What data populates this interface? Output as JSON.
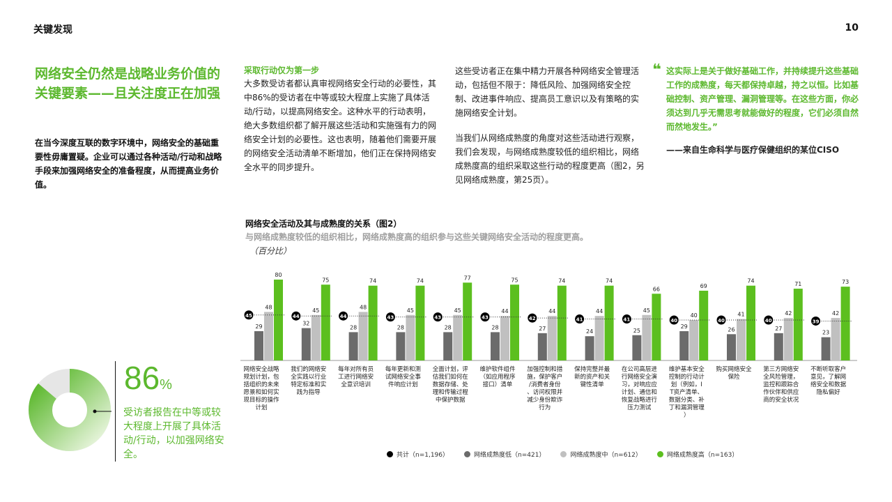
{
  "header": {
    "section": "关键发现",
    "page": "10"
  },
  "headline": "网络安全仍然是战略业务价值的关键要素——且关注度正在加强",
  "intro": "在当今深度互联的数字环境中，网络安全的基础重要性毋庸置疑。企业可以通过各种活动/行动和战略手段来加强网络安全的准备程度，从而提高业务价值。",
  "col1": {
    "heading": "采取行动仅为第一步",
    "body": "大多数受访者都认真审视网络安全行动的必要性，其中86%的受访者在中等或较大程度上实施了具体活动/行动，以提高网络安全。这种水平的行动表明，绝大多数组织都了解开展这些活动和实施强有力的网络安全计划的必要性。这也表明，随着他们需要开展的网络安全活动清单不断增加，他们正在保持网络安全水平的同步提升。"
  },
  "col2": {
    "p1": "这些受访者正在集中精力开展各种网络安全管理活动，包括但不限于：降低风险、加强网络安全控制、改进事件响应、提高员工意识以及有策略的实施网络安全计划。",
    "p2": "当我们从网络成熟度的角度对这些活动进行观察，我们会发现，与网络成熟度较低的组织相比，网络成熟度高的组织采取这些行动的程度更高（图2，另见网络成熟度，第25页）。"
  },
  "quote": {
    "mark": "❝",
    "text": "这实际上是关于做好基础工作，并持续提升这些基础工作的成熟度，每天都保持卓越，持之以恒。比如基础控制、资产管理、漏洞管理等。在这些方面，你必须达到几乎无需思考就能做好的程度，它们必须自然而然地发生。”",
    "attribution": "——来自生命科学与医疗保健组织的某位CISO"
  },
  "stat": {
    "value": "86",
    "unit": "%",
    "caption": "受访者报告在中等或较大程度上开展了具体活动/行动，以加强网络安全。",
    "donut_fraction": 0.86
  },
  "chart_data": {
    "type": "bar",
    "title": "网络安全活动及其与成熟度的关系（图2）",
    "subtitle": "与网络成熟度较低的组织相比，网络成熟度高的组织参与这些关键网络安全活动的程度更高。",
    "unit": "（百分比）",
    "ylim": [
      0,
      100
    ],
    "categories": [
      "网络安全战略规划计划，包括组织的未来愿景和如何实现目标的操作计划",
      "我们的网络安全实践以行业特定标准和实践为指导",
      "每年对所有员工进行网络安全意识培训",
      "每年更新和测试网络安全事件响应计划",
      "全面计划，评估我们如何在数据存储、处理和传输过程中保护数据",
      "维护软件组件（如应用程序接口）清单",
      "加强控制和措施，保护客户/消费者身份、访问权限并减少身份欺诈行为",
      "保持完整并最新的资产和关键性清单",
      "在公司高层进行网络安全演习，对响应应计划、通信和恢复战略进行压力测试",
      "维护基本安全控制的行动计划（例如，IT资产清单、数据分类、补丁和漏洞管理）",
      "购买网络安全保险",
      "第三方网络安全风险管理，监控和跟踪合作伙伴和供应商的安全状况",
      "不断听取客户意见，了解网络安全和数据隐私偏好"
    ],
    "series": [
      {
        "name": "共计（n=1,196）",
        "color": "#000000",
        "values": [
          45,
          44,
          44,
          43,
          43,
          43,
          42,
          41,
          41,
          40,
          40,
          40,
          39
        ]
      },
      {
        "name": "网络成熟度低（n=421）",
        "color": "#6b6b6b",
        "values": [
          29,
          32,
          28,
          28,
          28,
          28,
          27,
          24,
          25,
          29,
          26,
          27,
          23
        ]
      },
      {
        "name": "网络成熟度中（n=612）",
        "color": "#c0c0c0",
        "values": [
          48,
          45,
          48,
          45,
          45,
          44,
          44,
          44,
          45,
          40,
          41,
          42,
          42
        ]
      },
      {
        "name": "网络成熟度高（n=163）",
        "color": "#5cbf1f",
        "values": [
          80,
          75,
          74,
          74,
          77,
          75,
          74,
          74,
          66,
          69,
          74,
          71,
          73
        ]
      }
    ]
  }
}
